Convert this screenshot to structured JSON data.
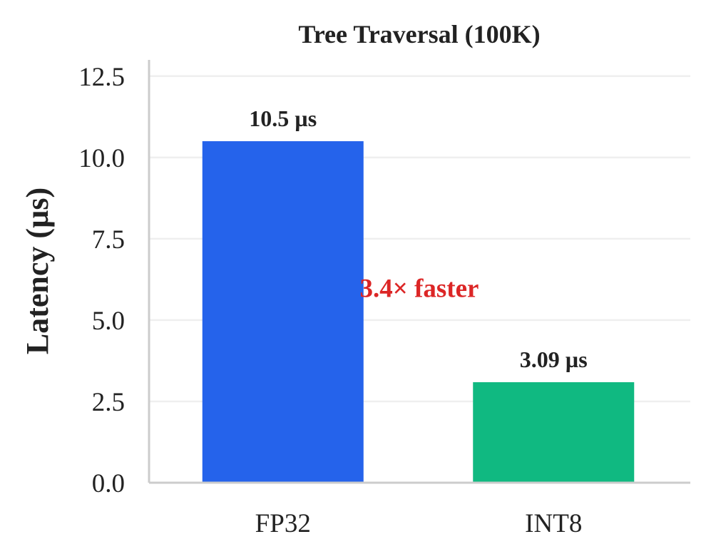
{
  "chart_data": {
    "type": "bar",
    "title": "Tree Traversal (100K)",
    "ylabel": "Latency (µs)",
    "xlabel": "",
    "categories": [
      "FP32",
      "INT8"
    ],
    "values": [
      10.5,
      3.09
    ],
    "value_labels": [
      "10.5 µs",
      "3.09 µs"
    ],
    "colors": [
      "#2563eb",
      "#10b981"
    ],
    "ylim": [
      0,
      13.0
    ],
    "yticks": [
      0.0,
      2.5,
      5.0,
      7.5,
      10.0,
      12.5
    ],
    "ytick_labels": [
      "0.0",
      "2.5",
      "5.0",
      "7.5",
      "10.0",
      "12.5"
    ],
    "grid": true,
    "annotation": {
      "text": "3.4× faster",
      "color": "#dc2626",
      "y": 6.0
    }
  }
}
